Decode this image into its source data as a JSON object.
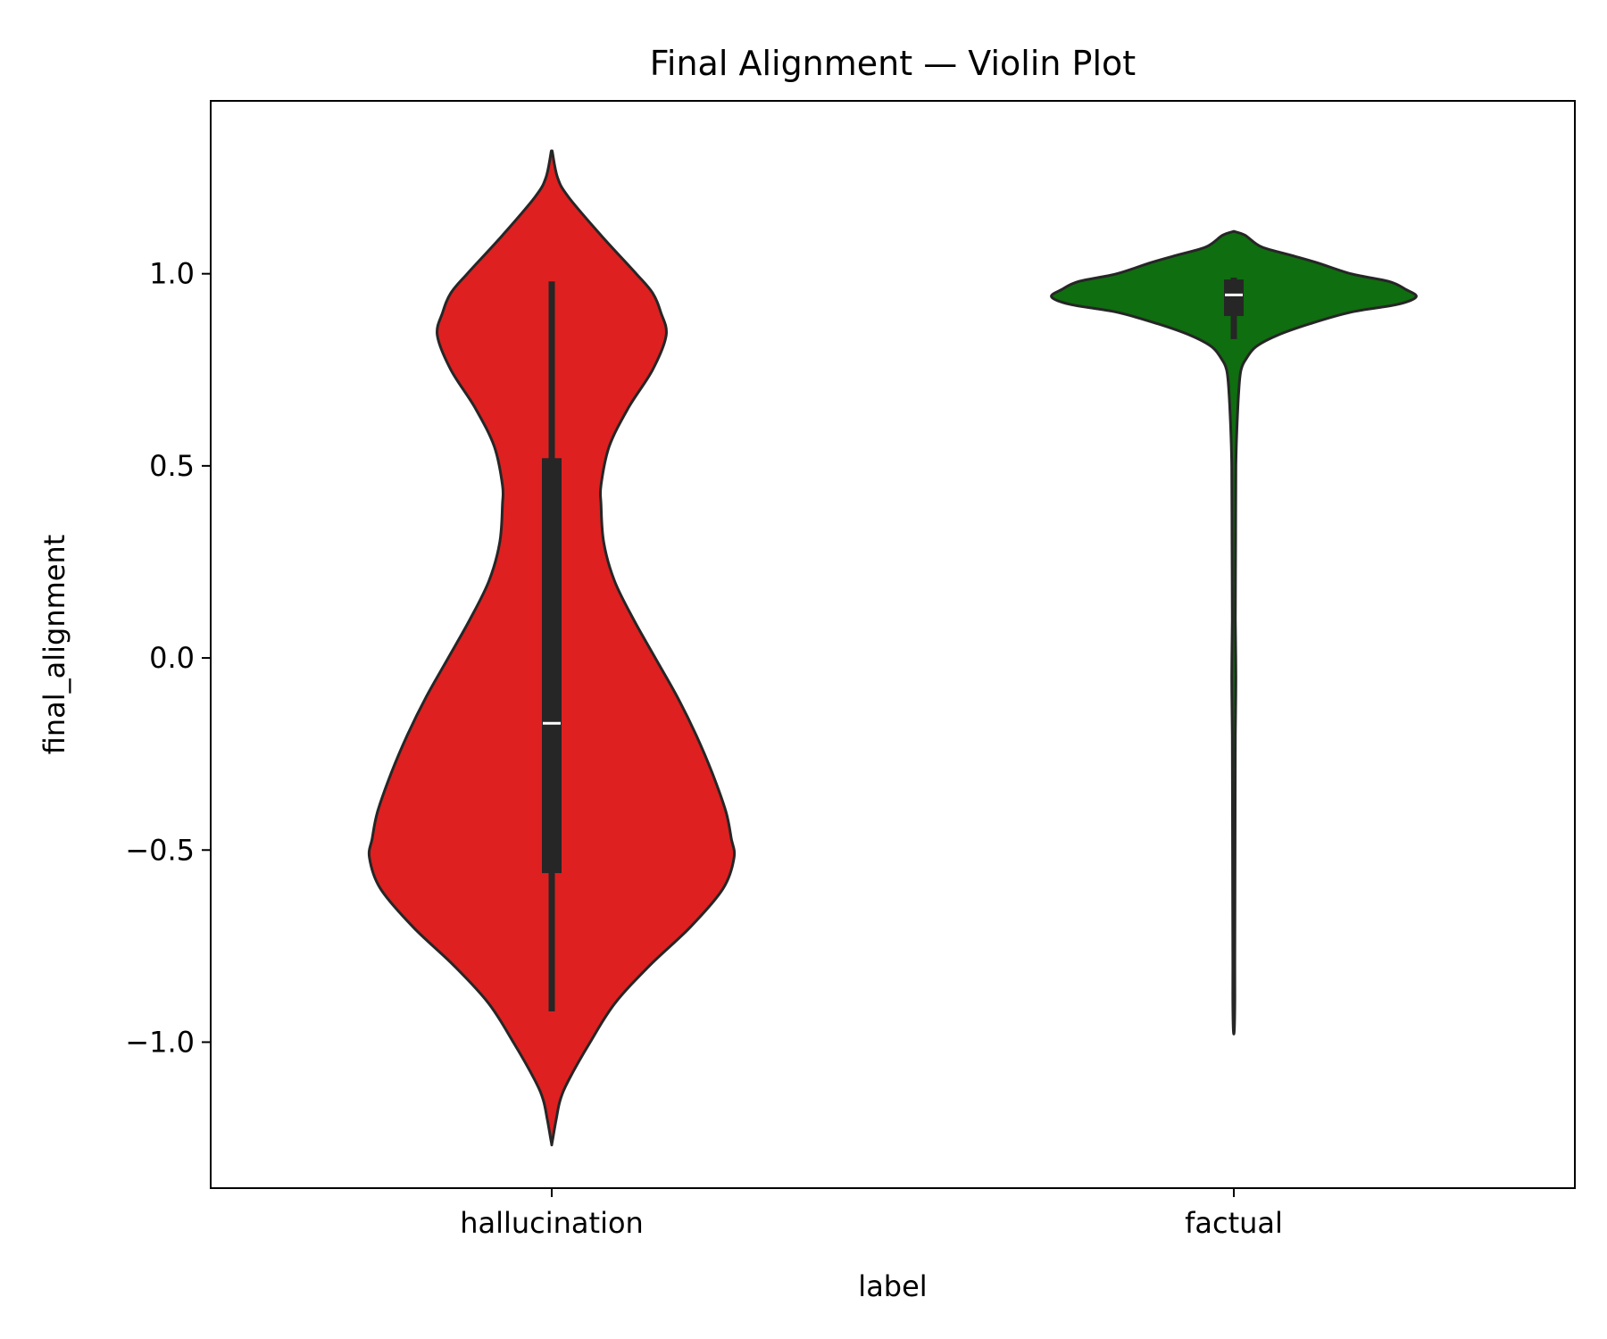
{
  "chart_data": {
    "type": "violin",
    "title": "Final Alignment — Violin Plot",
    "xlabel": "label",
    "ylabel": "final_alignment",
    "ylim": [
      -1.38,
      1.45
    ],
    "yticks": [
      {
        "value": 1.0,
        "label": "1.0"
      },
      {
        "value": 0.5,
        "label": "0.5"
      },
      {
        "value": 0.0,
        "label": "0.0"
      },
      {
        "value": -0.5,
        "label": "−0.5"
      },
      {
        "value": -1.0,
        "label": "−1.0"
      }
    ],
    "categories": [
      "hallucination",
      "factual"
    ],
    "grid": false,
    "series": [
      {
        "category": "hallucination",
        "color": "#de2020",
        "outline": "#262626",
        "median": -0.17,
        "q1": -0.56,
        "q3": 0.52,
        "whisker_low": -0.92,
        "whisker_high": 0.98,
        "density": [
          [
            1.32,
            0.0
          ],
          [
            1.25,
            0.02
          ],
          [
            1.2,
            0.06
          ],
          [
            1.1,
            0.18
          ],
          [
            1.0,
            0.31
          ],
          [
            0.95,
            0.37
          ],
          [
            0.9,
            0.4
          ],
          [
            0.84,
            0.42
          ],
          [
            0.75,
            0.37
          ],
          [
            0.65,
            0.28
          ],
          [
            0.55,
            0.21
          ],
          [
            0.45,
            0.18
          ],
          [
            0.4,
            0.18
          ],
          [
            0.3,
            0.19
          ],
          [
            0.2,
            0.23
          ],
          [
            0.1,
            0.3
          ],
          [
            0.0,
            0.38
          ],
          [
            -0.1,
            0.46
          ],
          [
            -0.2,
            0.53
          ],
          [
            -0.3,
            0.59
          ],
          [
            -0.4,
            0.64
          ],
          [
            -0.47,
            0.66
          ],
          [
            -0.52,
            0.67
          ],
          [
            -0.6,
            0.63
          ],
          [
            -0.7,
            0.51
          ],
          [
            -0.8,
            0.36
          ],
          [
            -0.9,
            0.23
          ],
          [
            -1.0,
            0.14
          ],
          [
            -1.1,
            0.06
          ],
          [
            -1.15,
            0.03
          ],
          [
            -1.2,
            0.015
          ],
          [
            -1.26,
            0.0
          ]
        ]
      },
      {
        "category": "factual",
        "color": "#0f6e0f",
        "outline": "#262626",
        "median": 0.945,
        "q1": 0.89,
        "q3": 0.985,
        "whisker_low": 0.83,
        "whisker_high": 0.99,
        "density": [
          [
            1.11,
            0.0
          ],
          [
            1.1,
            0.04
          ],
          [
            1.07,
            0.1
          ],
          [
            1.05,
            0.2
          ],
          [
            1.03,
            0.3
          ],
          [
            1.0,
            0.43
          ],
          [
            0.98,
            0.57
          ],
          [
            0.96,
            0.63
          ],
          [
            0.94,
            0.67
          ],
          [
            0.92,
            0.6
          ],
          [
            0.9,
            0.43
          ],
          [
            0.87,
            0.28
          ],
          [
            0.84,
            0.16
          ],
          [
            0.81,
            0.08
          ],
          [
            0.78,
            0.045
          ],
          [
            0.75,
            0.025
          ],
          [
            0.7,
            0.017
          ],
          [
            0.6,
            0.01
          ],
          [
            0.5,
            0.006
          ],
          [
            0.3,
            0.005
          ],
          [
            0.1,
            0.004
          ],
          [
            -0.05,
            0.006
          ],
          [
            -0.2,
            0.004
          ],
          [
            -0.5,
            0.003
          ],
          [
            -0.8,
            0.002
          ],
          [
            -0.9,
            0.002
          ],
          [
            -0.97,
            0.0
          ]
        ]
      }
    ]
  }
}
